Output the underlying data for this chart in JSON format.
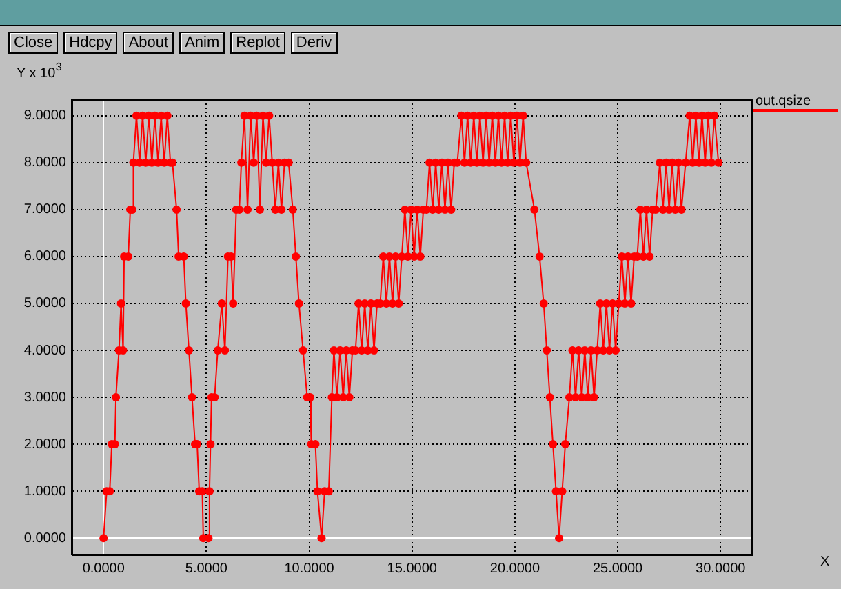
{
  "chart_data": {
    "type": "line",
    "ylabel": "Y x 10$^{3}$",
    "xlabel": "X",
    "annotations": [
      "Close",
      "Hdcpy",
      "About",
      "Anim",
      "Replot",
      "Deriv"
    ],
    "x": [
      0,
      0.15,
      0.3,
      0.4,
      0.55,
      0.6,
      0.75,
      0.85,
      0.95,
      1.0,
      1.2,
      1.3,
      1.4,
      1.45,
      1.6,
      1.75,
      1.9,
      2.05,
      2.2,
      2.35,
      2.5,
      2.65,
      2.8,
      2.95,
      3.1,
      3.25,
      3.35,
      3.55,
      3.65,
      3.9,
      4.0,
      4.15,
      4.3,
      4.45,
      4.55,
      4.65,
      4.8,
      4.85,
      5.1,
      5.15,
      5.2,
      5.25,
      5.4,
      5.55,
      5.75,
      5.9,
      6.05,
      6.2,
      6.3,
      6.45,
      6.6,
      6.7,
      6.85,
      7.0,
      7.15,
      7.3,
      7.45,
      7.6,
      7.75,
      7.9,
      8.05,
      8.2,
      8.35,
      8.5,
      8.65,
      8.8,
      9.0,
      9.2,
      9.35,
      9.5,
      9.7,
      9.9,
      10.05,
      10.1,
      10.3,
      10.4,
      10.6,
      10.75,
      10.95,
      11.1,
      11.2,
      11.35,
      11.5,
      11.65,
      11.8,
      11.95,
      12.1,
      12.25,
      12.4,
      12.55,
      12.7,
      12.85,
      13.0,
      13.15,
      13.3,
      13.45,
      13.6,
      13.75,
      13.9,
      14.05,
      14.2,
      14.35,
      14.5,
      14.65,
      14.8,
      14.95,
      15.1,
      15.25,
      15.4,
      15.55,
      15.7,
      15.85,
      16.0,
      16.15,
      16.3,
      16.45,
      16.6,
      16.75,
      16.9,
      17.05,
      17.2,
      17.4,
      17.55,
      17.7,
      17.85,
      18.0,
      18.15,
      18.3,
      18.45,
      18.6,
      18.75,
      18.9,
      19.05,
      19.2,
      19.35,
      19.5,
      19.65,
      19.8,
      19.95,
      20.1,
      20.25,
      20.4,
      20.55,
      20.95,
      21.2,
      21.4,
      21.55,
      21.7,
      21.85,
      22.0,
      22.15,
      22.3,
      22.45,
      22.65,
      22.8,
      22.95,
      23.1,
      23.25,
      23.4,
      23.55,
      23.7,
      23.85,
      24.0,
      24.15,
      24.3,
      24.45,
      24.6,
      24.75,
      24.9,
      25.05,
      25.2,
      25.35,
      25.5,
      25.65,
      25.8,
      25.95,
      26.1,
      26.25,
      26.4,
      26.55,
      26.7,
      26.85,
      27.05,
      27.2,
      27.35,
      27.5,
      27.65,
      27.8,
      27.95,
      28.1,
      28.3,
      28.5,
      28.65,
      28.8,
      28.95,
      29.1,
      29.25,
      29.4,
      29.55,
      29.7,
      29.9
    ],
    "series": [
      {
        "name": "out.qsize",
        "color": "#ff0000",
        "values": [
          0,
          1,
          1,
          2,
          2,
          3,
          4,
          5,
          4,
          6,
          6,
          7,
          7,
          8,
          9,
          8,
          9,
          8,
          9,
          8,
          9,
          8,
          9,
          8,
          9,
          8,
          8,
          7,
          6,
          6,
          5,
          4,
          3,
          2,
          2,
          1,
          1,
          0,
          0,
          1,
          2,
          3,
          3,
          4,
          5,
          4,
          6,
          6,
          5,
          7,
          7,
          8,
          9,
          7,
          9,
          8,
          9,
          7,
          9,
          8,
          9,
          8,
          7,
          8,
          7,
          8,
          8,
          7,
          6,
          5,
          4,
          3,
          3,
          2,
          2,
          1,
          0,
          1,
          1,
          3,
          4,
          3,
          4,
          3,
          4,
          3,
          4,
          4,
          5,
          4,
          5,
          4,
          5,
          4,
          5,
          5,
          6,
          5,
          6,
          5,
          6,
          5,
          6,
          7,
          6,
          7,
          6,
          7,
          6,
          7,
          7,
          8,
          7,
          8,
          7,
          8,
          7,
          8,
          7,
          8,
          8,
          9,
          8,
          9,
          8,
          9,
          8,
          9,
          8,
          9,
          8,
          9,
          8,
          9,
          8,
          9,
          8,
          9,
          8,
          9,
          8,
          9,
          8,
          7,
          6,
          5,
          4,
          3,
          2,
          1,
          0,
          1,
          2,
          3,
          4,
          3,
          4,
          3,
          4,
          3,
          4,
          3,
          4,
          5,
          4,
          5,
          4,
          5,
          4,
          5,
          6,
          5,
          6,
          5,
          6,
          6,
          7,
          6,
          7,
          6,
          7,
          7,
          8,
          7,
          8,
          7,
          8,
          7,
          8,
          7,
          8,
          9,
          8,
          9,
          8,
          9,
          8,
          9,
          8,
          9,
          8
        ]
      }
    ],
    "xlim": [
      -1.55,
      31.5
    ],
    "ylim": [
      -0.35,
      9.35
    ],
    "xticks": [
      {
        "value": 0,
        "label": "0.0000"
      },
      {
        "value": 5,
        "label": "5.0000"
      },
      {
        "value": 10,
        "label": "10.0000"
      },
      {
        "value": 15,
        "label": "15.0000"
      },
      {
        "value": 20,
        "label": "20.0000"
      },
      {
        "value": 25,
        "label": "25.0000"
      },
      {
        "value": 30,
        "label": "30.0000"
      }
    ],
    "yticks": [
      {
        "value": 0,
        "label": "0.0000"
      },
      {
        "value": 1,
        "label": "1.0000"
      },
      {
        "value": 2,
        "label": "2.0000"
      },
      {
        "value": 3,
        "label": "3.0000"
      },
      {
        "value": 4,
        "label": "4.0000"
      },
      {
        "value": 5,
        "label": "5.0000"
      },
      {
        "value": 6,
        "label": "6.0000"
      },
      {
        "value": 7,
        "label": "7.0000"
      },
      {
        "value": 8,
        "label": "8.0000"
      },
      {
        "value": 9,
        "label": "9.0000"
      }
    ],
    "grid": true,
    "legend": "top right",
    "marker": "circle",
    "line_style": "solid"
  }
}
